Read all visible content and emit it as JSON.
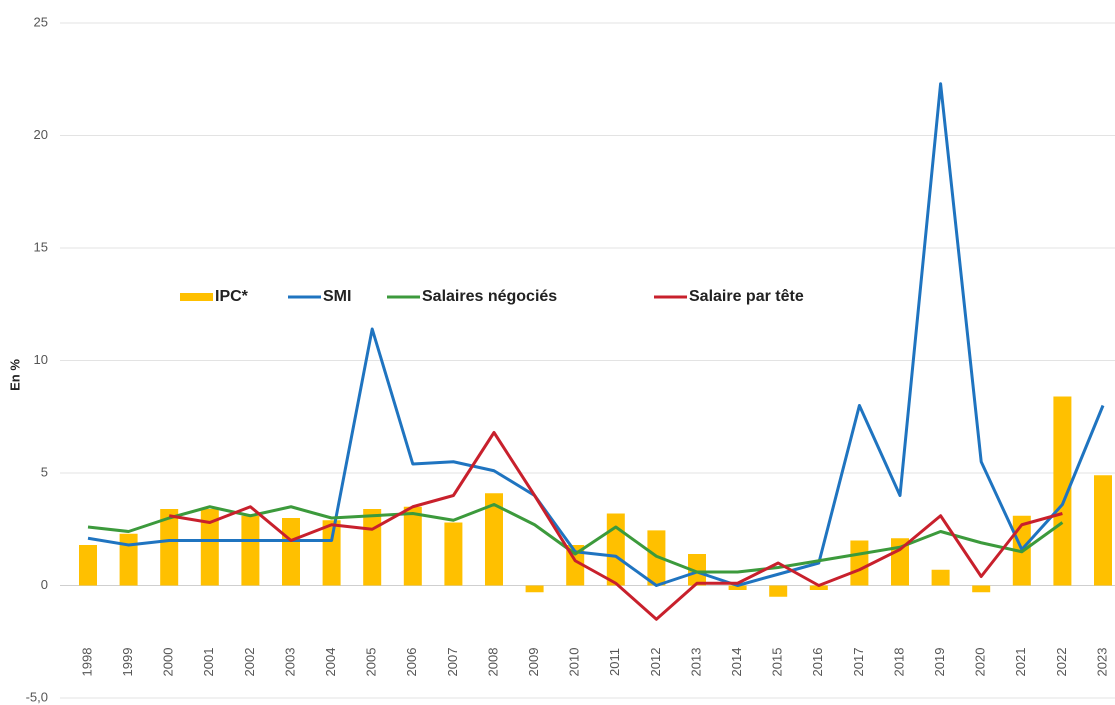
{
  "chart_data": {
    "type": "bar-line",
    "y_label": "En %",
    "categories": [
      "1998",
      "1999",
      "2000",
      "2001",
      "2002",
      "2003",
      "2004",
      "2005",
      "2006",
      "2007",
      "2008",
      "2009",
      "2010",
      "2011",
      "2012",
      "2013",
      "2014",
      "2015",
      "2016",
      "2017",
      "2018",
      "2019",
      "2020",
      "2021",
      "2022",
      "2023"
    ],
    "series": [
      {
        "name": "IPC*",
        "kind": "bar",
        "color": "#ffc000",
        "values": [
          1.8,
          2.3,
          3.4,
          3.4,
          3.1,
          3.0,
          2.9,
          3.4,
          3.5,
          2.8,
          4.1,
          -0.3,
          1.8,
          3.2,
          2.45,
          1.4,
          -0.2,
          -0.5,
          -0.2,
          2.0,
          2.1,
          0.7,
          -0.3,
          3.1,
          8.4,
          4.9
        ]
      },
      {
        "name": "SMI",
        "kind": "line",
        "color": "#1f74c0",
        "values": [
          2.1,
          1.8,
          2.0,
          2.0,
          2.0,
          2.0,
          2.0,
          11.4,
          5.4,
          5.5,
          5.1,
          4.0,
          1.5,
          1.3,
          0.0,
          0.6,
          0.0,
          0.5,
          1.0,
          8.0,
          4.0,
          22.3,
          5.5,
          1.6,
          3.6,
          8.0
        ]
      },
      {
        "name": "Salaires négociés",
        "kind": "line",
        "color": "#3c9a3c",
        "values": [
          2.6,
          2.4,
          3.0,
          3.5,
          3.1,
          3.5,
          3.0,
          3.1,
          3.2,
          2.9,
          3.6,
          2.7,
          1.4,
          2.6,
          1.3,
          0.6,
          0.6,
          0.8,
          1.1,
          1.4,
          1.7,
          2.4,
          1.9,
          1.5,
          2.8,
          null
        ]
      },
      {
        "name": "Salaire par tête",
        "kind": "line",
        "color": "#c8202c",
        "values": [
          null,
          null,
          3.1,
          2.8,
          3.5,
          2.0,
          2.7,
          2.5,
          3.5,
          4.0,
          6.8,
          4.0,
          1.1,
          0.1,
          -1.5,
          0.1,
          0.1,
          1.0,
          0.0,
          0.7,
          1.6,
          3.1,
          0.4,
          2.7,
          3.2,
          null
        ]
      }
    ],
    "ylim": [
      -5,
      25
    ],
    "yticks": [
      {
        "value": -5,
        "label": "-5,0"
      },
      0,
      5,
      10,
      15,
      20,
      25
    ],
    "grid": true
  }
}
